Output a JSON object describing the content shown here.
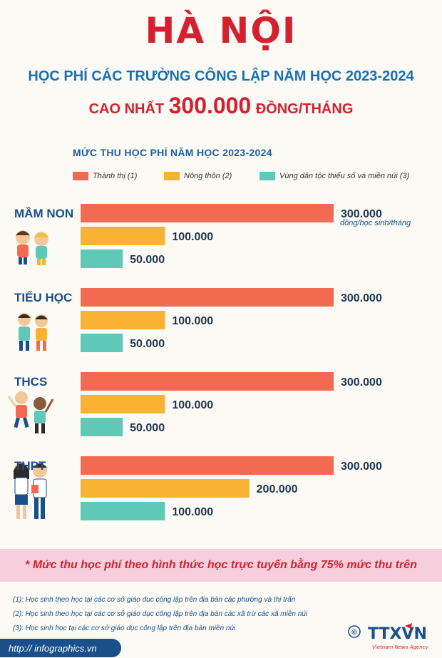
{
  "header": {
    "title": "HÀ NỘI",
    "subtitle1": "HỌC PHÍ CÁC TRƯỜNG CÔNG LẬP NĂM HỌC 2023-2024",
    "subtitle2_pre": "CAO NHẤT",
    "subtitle2_value": "300.000",
    "subtitle2_post": "ĐỒNG/THÁNG"
  },
  "colors": {
    "urban": "#f36a52",
    "rural": "#f9b233",
    "ethnic": "#5ec9b6",
    "title_red": "#d6202f",
    "title_blue": "#1a6fb5",
    "label_blue": "#1a4f8a"
  },
  "chart_data": {
    "type": "bar",
    "orientation": "horizontal",
    "title": "MỨC THU HỌC PHÍ NĂM HỌC 2023-2024",
    "categories": [
      "MẦM NON",
      "TIỂU HỌC",
      "THCS",
      "THPT"
    ],
    "series": [
      {
        "name": "Thành thị (1)",
        "values": [
          300000,
          300000,
          300000,
          300000
        ],
        "labels": [
          "300.000",
          "300.000",
          "300.000",
          "300.000"
        ]
      },
      {
        "name": "Nông thôn (2)",
        "values": [
          100000,
          100000,
          100000,
          200000
        ],
        "labels": [
          "100.000",
          "100.000",
          "100.000",
          "200.000"
        ]
      },
      {
        "name": "Vùng dân tộc thiểu số và miền núi (3)",
        "values": [
          50000,
          50000,
          50000,
          100000
        ],
        "labels": [
          "50.000",
          "50.000",
          "50.000",
          "100.000"
        ]
      }
    ],
    "unit_annotation": "đồng/học sinh/tháng",
    "xlim": [
      0,
      300000
    ],
    "legend_position": "top"
  },
  "footnote": "* Mức thu học phí theo hình thức học trực tuyến bằng 75% mức thu trên",
  "notes": [
    "(1): Học sinh theo học tại các cơ sở giáo dục công lập trên địa bàn các phường và thị trấn",
    "(2): Học sinh theo học tại các cơ sở giáo dục công lập trên địa bàn các xã trừ các xã miền núi",
    "(3): Học sinh học tại các cơ sở giáo dục công lập trên địa bàn miền núi"
  ],
  "source": "http:// infographics.vn",
  "logo": {
    "copyright": "©",
    "name": "TTXVN",
    "tagline": "Vietnam News Agency"
  }
}
